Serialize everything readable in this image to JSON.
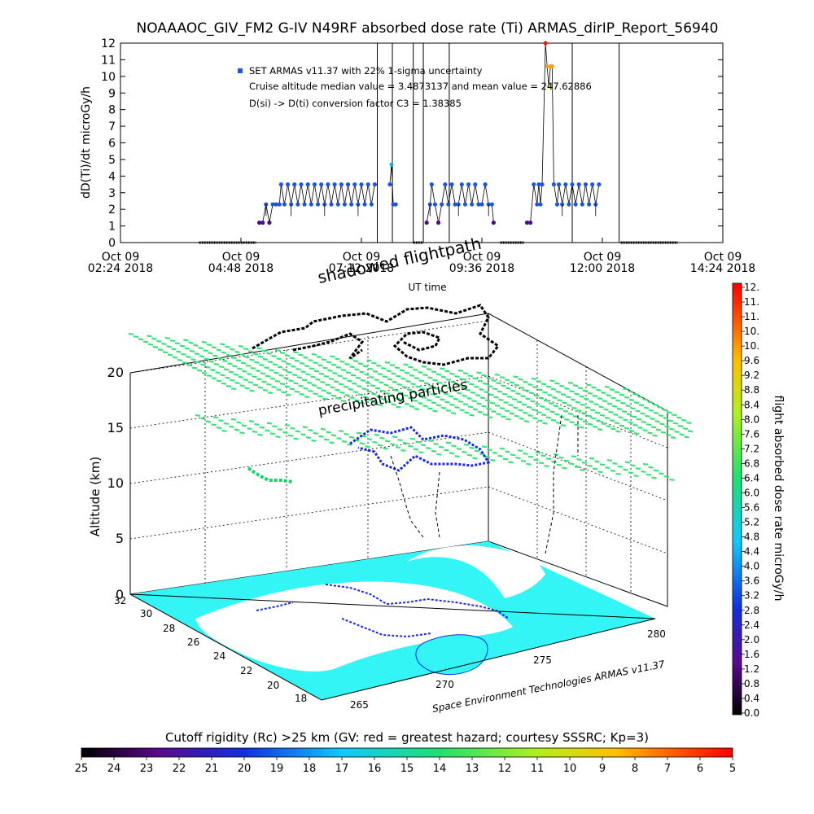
{
  "title": "NOAAAOC_GIV_FM2 G-IV    N49RF  absorbed dose rate (Ti) ARMAS_dirIP_Report_56940",
  "time_chart": {
    "type": "scatter",
    "ylabel": "dD(Ti)/dt microGy/h",
    "xlabel": "UT time",
    "ylim": [
      0,
      12
    ],
    "y_ticks": [
      "0",
      "1",
      "2",
      "3",
      "4",
      "5",
      "6",
      "7",
      "8",
      "9",
      "10",
      "11",
      "12"
    ],
    "x_ticks": [
      {
        "l1": "Oct 09",
        "l2": "02:24 2018",
        "t": 144
      },
      {
        "l1": "Oct 09",
        "l2": "04:48 2018",
        "t": 288
      },
      {
        "l1": "Oct 09",
        "l2": "07:12 2018",
        "t": 432
      },
      {
        "l1": "Oct 09",
        "l2": "09:36 2018",
        "t": 576
      },
      {
        "l1": "Oct 09",
        "l2": "12:00 2018",
        "t": 720
      },
      {
        "l1": "Oct 09",
        "l2": "14:24 2018",
        "t": 864
      }
    ],
    "xlim_minutes": [
      144,
      864
    ],
    "legend": [
      "SET ARMAS v11.37 with 22% 1-sigma uncertainty",
      "Cruise altitude median value = 3.4873137 and mean value = 247.62886",
      "D(si) -> D(ti) conversion factor C3 = 1.38385"
    ],
    "ground_segments": [
      [
        238,
        306
      ],
      [
        494,
        506
      ],
      [
        598,
        626
      ],
      [
        742,
        810
      ]
    ],
    "spike_times": [
      451,
      469,
      494,
      506,
      537,
      684,
      740
    ],
    "points": [
      [
        310,
        1.2
      ],
      [
        314,
        1.2
      ],
      [
        318,
        2.3
      ],
      [
        322,
        1.2
      ],
      [
        326,
        2.3
      ],
      [
        330,
        2.3
      ],
      [
        334,
        2.3
      ],
      [
        336,
        3.5
      ],
      [
        340,
        2.3
      ],
      [
        344,
        3.5
      ],
      [
        348,
        2.3
      ],
      [
        352,
        3.5
      ],
      [
        356,
        2.3
      ],
      [
        360,
        3.5
      ],
      [
        364,
        2.3
      ],
      [
        368,
        3.5
      ],
      [
        372,
        2.3
      ],
      [
        376,
        3.5
      ],
      [
        380,
        2.3
      ],
      [
        384,
        3.5
      ],
      [
        388,
        2.3
      ],
      [
        392,
        3.5
      ],
      [
        396,
        2.3
      ],
      [
        400,
        3.5
      ],
      [
        404,
        2.3
      ],
      [
        408,
        3.5
      ],
      [
        412,
        2.3
      ],
      [
        416,
        3.5
      ],
      [
        420,
        2.3
      ],
      [
        424,
        3.5
      ],
      [
        428,
        2.3
      ],
      [
        432,
        3.5
      ],
      [
        436,
        2.3
      ],
      [
        440,
        3.5
      ],
      [
        444,
        2.3
      ],
      [
        448,
        3.5
      ],
      [
        466,
        3.5
      ],
      [
        468,
        4.7
      ],
      [
        470,
        2.3
      ],
      [
        473,
        2.3
      ],
      [
        510,
        1.2
      ],
      [
        514,
        2.3
      ],
      [
        516,
        3.5
      ],
      [
        520,
        2.3
      ],
      [
        524,
        1.2
      ],
      [
        528,
        2.3
      ],
      [
        532,
        3.5
      ],
      [
        536,
        2.3
      ],
      [
        540,
        3.5
      ],
      [
        544,
        2.3
      ],
      [
        548,
        2.3
      ],
      [
        552,
        3.5
      ],
      [
        556,
        2.3
      ],
      [
        560,
        3.5
      ],
      [
        564,
        2.3
      ],
      [
        568,
        3.5
      ],
      [
        572,
        2.3
      ],
      [
        576,
        2.3
      ],
      [
        580,
        3.5
      ],
      [
        584,
        2.3
      ],
      [
        588,
        2.3
      ],
      [
        590,
        1.2
      ],
      [
        630,
        1.2
      ],
      [
        634,
        1.2
      ],
      [
        638,
        3.5
      ],
      [
        642,
        2.3
      ],
      [
        644,
        3.5
      ],
      [
        646,
        2.3
      ],
      [
        648,
        3.5
      ],
      [
        652,
        12.0
      ],
      [
        654,
        10.6
      ],
      [
        656,
        9.4
      ],
      [
        658,
        10.6
      ],
      [
        660,
        10.6
      ],
      [
        662,
        3.5
      ],
      [
        666,
        2.3
      ],
      [
        668,
        3.5
      ],
      [
        672,
        2.3
      ],
      [
        676,
        3.5
      ],
      [
        680,
        2.3
      ],
      [
        684,
        3.5
      ],
      [
        688,
        2.3
      ],
      [
        692,
        3.5
      ],
      [
        696,
        2.3
      ],
      [
        700,
        3.5
      ],
      [
        704,
        2.3
      ],
      [
        708,
        3.5
      ],
      [
        712,
        2.3
      ],
      [
        716,
        3.5
      ]
    ]
  },
  "map_chart": {
    "annotations": [
      "shadowed flightpath",
      "precipitating particles"
    ],
    "zlabel": "Altitude (km)",
    "z_ticks": [
      "0",
      "5",
      "10",
      "15",
      "20"
    ],
    "lat_ticks": [
      "32",
      "30",
      "28",
      "26",
      "24",
      "22",
      "20",
      "18"
    ],
    "lon_ticks": [
      "265",
      "270",
      "275",
      "280"
    ],
    "credit": "Space Environment Technologies ARMAS v11.37"
  },
  "dose_colorbar": {
    "label": "flight absorbed dose rate microGy/h",
    "ticks": [
      "12.",
      "11.",
      "11.",
      "10.",
      "10.",
      "9.6",
      "9.2",
      "8.8",
      "8.4",
      "8.0",
      "7.6",
      "7.2",
      "6.8",
      "6.4",
      "6.0",
      "5.6",
      "5.2",
      "4.8",
      "4.4",
      "4.0",
      "3.6",
      "3.2",
      "2.8",
      "2.4",
      "2.0",
      "1.6",
      "1.2",
      "0.8",
      "0.4",
      "0.0"
    ]
  },
  "rigidity_colorbar": {
    "label": "Cutoff rigidity (Rc) >25 km (GV: red = greatest hazard; courtesy SSSRC; Kp=3)",
    "ticks": [
      "25",
      "24",
      "23",
      "22",
      "21",
      "20",
      "19",
      "18",
      "17",
      "16",
      "15",
      "14",
      "13",
      "12",
      "11",
      "10",
      "9",
      "8",
      "7",
      "6",
      "5"
    ]
  },
  "colors": {
    "map_fill": "#33f5f5",
    "particle_green": "#3de07a",
    "point_blue": "#1f55d6",
    "point_purple": "#4a0f80"
  }
}
